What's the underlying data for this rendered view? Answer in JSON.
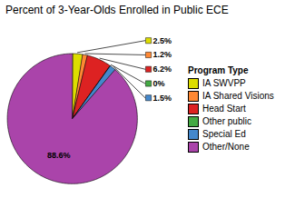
{
  "chart_data": {
    "type": "pie",
    "title": "Percent of 3-Year-Olds Enrolled in Public ECE",
    "categories": [
      "IA SWVPP",
      "IA Shared Visions",
      "Head Start",
      "Other public",
      "Special Ed",
      "Other/None"
    ],
    "values": [
      2.5,
      1.2,
      6.2,
      0.0,
      1.5,
      88.6
    ],
    "value_labels": [
      "2.5%",
      "1.2%",
      "6.2%",
      "0%",
      "1.5%",
      "88.6%"
    ],
    "colors": [
      "#dddd00",
      "#ff8833",
      "#dd2222",
      "#44aa44",
      "#4488cc",
      "#aa44aa"
    ],
    "data_labels": true,
    "legend": "right",
    "legend_title": "Program Type"
  }
}
